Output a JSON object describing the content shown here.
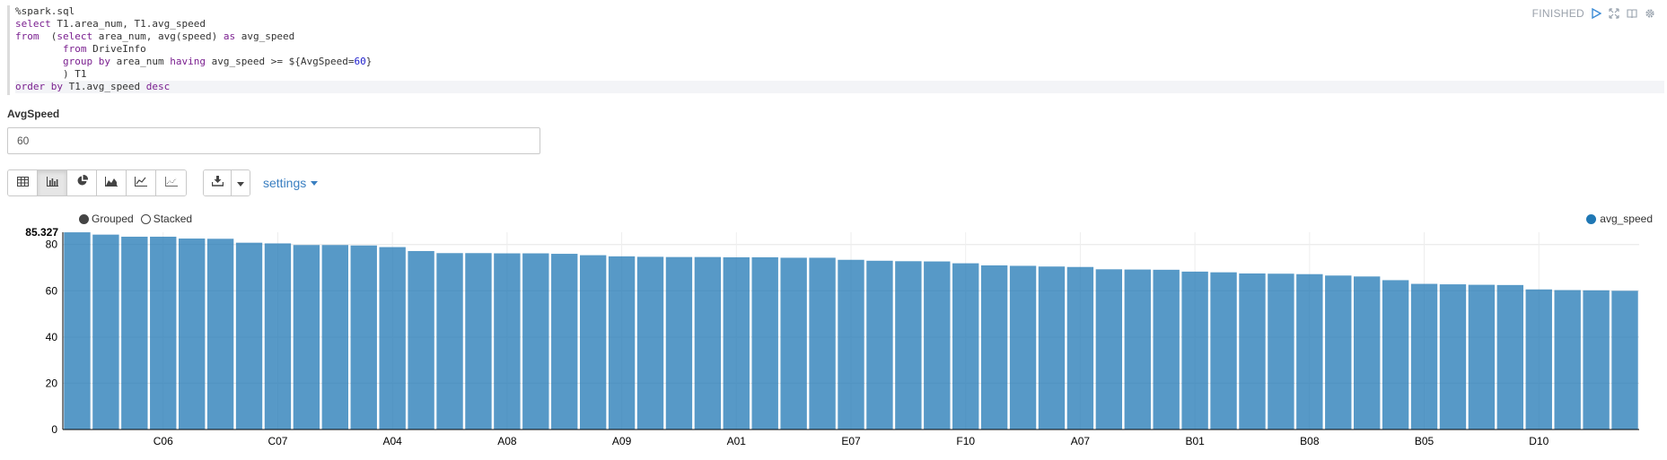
{
  "paragraph": {
    "status": "FINISHED",
    "icons": [
      "run-icon",
      "expand-icon",
      "book-icon",
      "gear-icon"
    ],
    "code_lines": [
      {
        "segments": [
          {
            "t": "%spark.sql"
          }
        ]
      },
      {
        "segments": [
          {
            "t": "select",
            "c": "kw"
          },
          {
            "t": " T1.area_num, T1.avg_speed"
          }
        ]
      },
      {
        "segments": [
          {
            "t": "from",
            "c": "kw"
          },
          {
            "t": "  ("
          },
          {
            "t": "select",
            "c": "kw"
          },
          {
            "t": " area_num, avg(speed) "
          },
          {
            "t": "as",
            "c": "kw"
          },
          {
            "t": " avg_speed"
          }
        ]
      },
      {
        "segments": [
          {
            "t": "        "
          },
          {
            "t": "from",
            "c": "kw"
          },
          {
            "t": " DriveInfo"
          }
        ]
      },
      {
        "segments": [
          {
            "t": "        "
          },
          {
            "t": "group by",
            "c": "kw"
          },
          {
            "t": " area_num "
          },
          {
            "t": "having",
            "c": "kw"
          },
          {
            "t": " avg_speed >= ${AvgSpeed="
          },
          {
            "t": "60",
            "c": "num"
          },
          {
            "t": "}"
          }
        ]
      },
      {
        "segments": [
          {
            "t": "        ) T1"
          }
        ]
      },
      {
        "segments": [
          {
            "t": "order by",
            "c": "kw"
          },
          {
            "t": " T1.avg_speed "
          },
          {
            "t": "desc",
            "c": "kw"
          }
        ],
        "active": true
      }
    ]
  },
  "form": {
    "label": "AvgSpeed",
    "value": "60"
  },
  "toolbar": {
    "view_buttons": [
      "table-icon",
      "bar-chart-icon",
      "pie-chart-icon",
      "area-chart-icon",
      "line-chart-icon",
      "scatter-chart-icon"
    ],
    "active_view": "bar-chart-icon",
    "settings_label": "settings"
  },
  "chart_controls": {
    "grouped_label": "Grouped",
    "stacked_label": "Stacked",
    "selected": "Grouped"
  },
  "chart_data": {
    "type": "bar",
    "title": "",
    "xlabel": "",
    "ylabel": "",
    "ylim": [
      0,
      85.327
    ],
    "y_max_label": "85.327",
    "yticks": [
      0,
      20,
      40,
      60,
      80
    ],
    "visible_x_labels": [
      "C06",
      "C07",
      "A04",
      "A08",
      "A09",
      "A01",
      "E07",
      "F10",
      "A07",
      "B01",
      "B08",
      "B05",
      "D10"
    ],
    "series": [
      {
        "name": "avg_speed",
        "color": "#1f77b4",
        "values": [
          85.3,
          84.3,
          83.4,
          83.4,
          82.6,
          82.5,
          80.8,
          80.5,
          79.8,
          79.8,
          79.6,
          78.9,
          77.2,
          76.3,
          76.3,
          76.2,
          76.2,
          76.0,
          75.4,
          74.9,
          74.7,
          74.6,
          74.6,
          74.5,
          74.5,
          74.3,
          74.3,
          73.4,
          73.0,
          72.8,
          72.7,
          71.9,
          71.0,
          70.8,
          70.5,
          70.3,
          69.3,
          69.2,
          69.1,
          68.3,
          68.0,
          67.5,
          67.4,
          67.2,
          66.6,
          66.2,
          64.6,
          63.0,
          62.8,
          62.6,
          62.5,
          60.6,
          60.3,
          60.2,
          60.0
        ]
      }
    ]
  }
}
